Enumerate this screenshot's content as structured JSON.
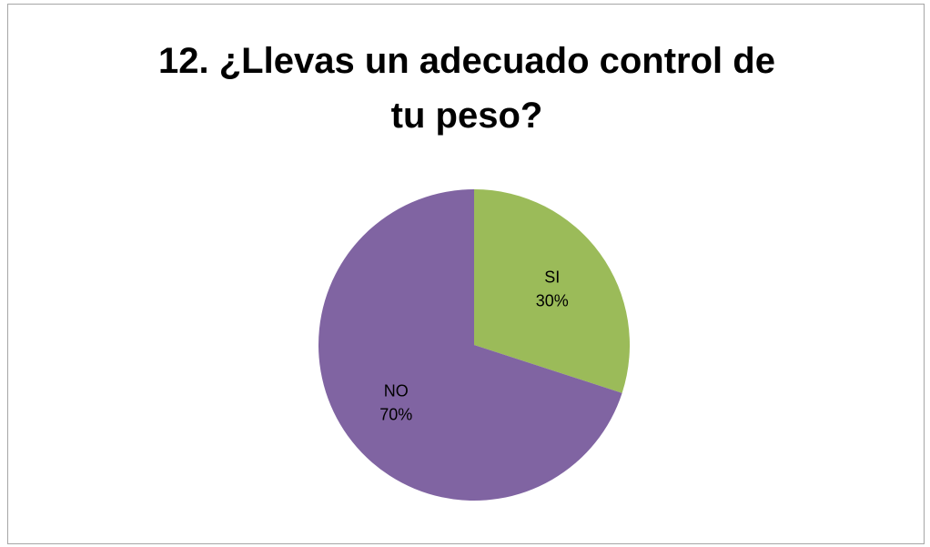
{
  "chart_data": {
    "type": "pie",
    "title": "12. ¿Llevas un adecuado control de tu peso?",
    "categories": [
      "SI",
      "NO"
    ],
    "values": [
      30,
      70
    ],
    "labels": [
      "30%",
      "70%"
    ],
    "colors": [
      "#9bbb59",
      "#8064a2"
    ],
    "start_angle_deg": 0,
    "direction": "clockwise",
    "legend": "none"
  }
}
